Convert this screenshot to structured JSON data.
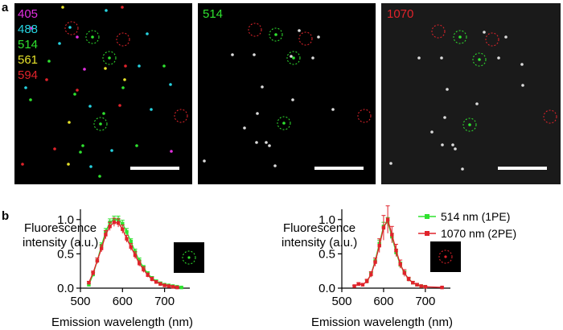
{
  "figure": {
    "panel_a_label": "a",
    "panel_b_label": "b",
    "merged_channels": [
      {
        "label": "405",
        "color": "#e22fe0"
      },
      {
        "label": "488",
        "color": "#26d3e0"
      },
      {
        "label": "514",
        "color": "#2fe22f"
      },
      {
        "label": "561",
        "color": "#e6e22a"
      },
      {
        "label": "594",
        "color": "#e0232b"
      }
    ],
    "single_panels": [
      {
        "label": "514",
        "color": "#2fe22f"
      },
      {
        "label": "1070",
        "color": "#e0232b"
      }
    ],
    "colors": {
      "green": "#2fe22f",
      "red": "#e0232b",
      "bead_gray": "#dcdcdc"
    }
  },
  "chart_data": [
    {
      "type": "line",
      "title": "",
      "xlabel": "Emission wavelength (nm)",
      "ylabel_lines": [
        "Fluorescence",
        "intensity (a.u.)"
      ],
      "xlim": [
        500,
        760
      ],
      "ylim": [
        0,
        1.15
      ],
      "xticks": [
        500,
        600,
        700
      ],
      "yticks": [
        0.0,
        0.5,
        1.0
      ],
      "xtick_labels": [
        "500",
        "600",
        "700"
      ],
      "ytick_labels": [
        "0.0",
        "0.5",
        "1.0"
      ],
      "series": [
        {
          "name": "514 nm (1PE)",
          "color": "#2fe22f",
          "x": [
            520,
            530,
            540,
            550,
            560,
            570,
            580,
            590,
            600,
            610,
            620,
            630,
            640,
            650,
            660,
            670,
            680,
            690,
            700,
            710,
            720,
            730,
            740
          ],
          "y": [
            0.05,
            0.2,
            0.4,
            0.62,
            0.82,
            0.96,
            1.0,
            1.0,
            0.94,
            0.82,
            0.68,
            0.53,
            0.4,
            0.3,
            0.21,
            0.15,
            0.1,
            0.07,
            0.05,
            0.04,
            0.03,
            0.02,
            0.01
          ],
          "err": [
            0.02,
            0.03,
            0.04,
            0.04,
            0.05,
            0.05,
            0.05,
            0.05,
            0.05,
            0.05,
            0.04,
            0.04,
            0.04,
            0.03,
            0.03,
            0.02,
            0.02,
            0.02,
            0.01,
            0.01,
            0.01,
            0.01,
            0.01
          ]
        },
        {
          "name": "1070 nm (2PE)",
          "color": "#e0232b",
          "x": [
            520,
            530,
            540,
            550,
            560,
            570,
            580,
            590,
            600,
            610,
            620,
            630,
            640,
            650,
            660,
            670,
            680,
            690,
            700,
            710,
            720,
            730
          ],
          "y": [
            0.08,
            0.22,
            0.4,
            0.58,
            0.78,
            0.9,
            0.96,
            0.95,
            0.86,
            0.72,
            0.6,
            0.48,
            0.36,
            0.27,
            0.19,
            0.13,
            0.09,
            0.06,
            0.04,
            0.03,
            0.02,
            0.01
          ],
          "err": [
            0.02,
            0.03,
            0.04,
            0.05,
            0.06,
            0.06,
            0.06,
            0.06,
            0.06,
            0.05,
            0.05,
            0.05,
            0.04,
            0.04,
            0.03,
            0.03,
            0.02,
            0.02,
            0.01,
            0.01,
            0.01,
            0.01
          ]
        }
      ],
      "inset": {
        "ring_color": "#2fe22f"
      }
    },
    {
      "type": "line",
      "title": "",
      "xlabel": "Emission wavelength (nm)",
      "ylabel_lines": [
        "Fluorescence",
        "intensity (a.u.)"
      ],
      "xlim": [
        500,
        760
      ],
      "ylim": [
        0,
        1.15
      ],
      "xticks": [
        500,
        600,
        700
      ],
      "yticks": [
        0.0,
        0.5,
        1.0
      ],
      "xtick_labels": [
        "500",
        "600",
        "700"
      ],
      "ytick_labels": [
        "0.0",
        "0.5",
        "1.0"
      ],
      "series": [
        {
          "name": "514 nm (1PE)",
          "color": "#2fe22f",
          "x": [
            560,
            570,
            580,
            590,
            600,
            610,
            620,
            630,
            640,
            650,
            660,
            670,
            680,
            690,
            700
          ],
          "y": [
            0.1,
            0.2,
            0.4,
            0.65,
            0.9,
            0.97,
            0.75,
            0.52,
            0.34,
            0.22,
            0.13,
            0.08,
            0.05,
            0.03,
            0.02
          ],
          "err": [
            0.02,
            0.03,
            0.04,
            0.05,
            0.06,
            0.06,
            0.05,
            0.05,
            0.04,
            0.03,
            0.02,
            0.02,
            0.01,
            0.01,
            0.01
          ]
        },
        {
          "name": "1070 nm (2PE)",
          "color": "#e0232b",
          "x": [
            530,
            540,
            550,
            560,
            570,
            580,
            590,
            600,
            610,
            620,
            630,
            640,
            650,
            660,
            670,
            680,
            690,
            700,
            740
          ],
          "y": [
            0.03,
            0.06,
            0.05,
            0.1,
            0.2,
            0.38,
            0.62,
            0.88,
            1.0,
            0.78,
            0.55,
            0.35,
            0.22,
            0.13,
            0.08,
            0.05,
            0.03,
            0.02,
            0.01
          ],
          "err": [
            0.01,
            0.02,
            0.02,
            0.03,
            0.04,
            0.06,
            0.1,
            0.18,
            0.2,
            0.12,
            0.09,
            0.06,
            0.05,
            0.03,
            0.02,
            0.02,
            0.01,
            0.01,
            0.01
          ]
        }
      ],
      "legend": {
        "placement": "top-right",
        "entries": [
          "514 nm (1PE)",
          "1070 nm (2PE)"
        ]
      },
      "inset": {
        "ring_color": "#e0232b"
      }
    }
  ]
}
